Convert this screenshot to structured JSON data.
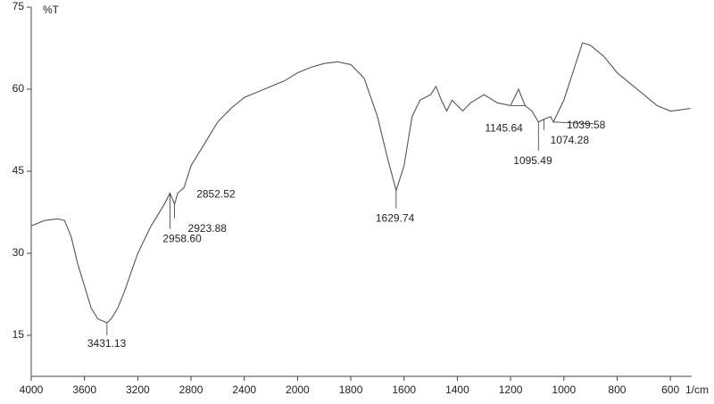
{
  "chart_data": {
    "type": "line",
    "y_title": "%T",
    "x_title": "1/cm",
    "x_scale": {
      "break": 2000,
      "factor": 2
    },
    "xlim": [
      4000,
      520
    ],
    "ylim": [
      7.5,
      75
    ],
    "xticks": [
      4000,
      3600,
      3200,
      2800,
      2400,
      2000,
      1800,
      1600,
      1400,
      1200,
      1000,
      800,
      600
    ],
    "yticks": [
      15,
      30,
      45,
      60,
      75
    ],
    "color": "#555555",
    "x": [
      4000,
      3900,
      3800,
      3750,
      3700,
      3650,
      3600,
      3550,
      3500,
      3431.13,
      3400,
      3350,
      3300,
      3200,
      3100,
      3000,
      2958.6,
      2923.88,
      2900,
      2852.52,
      2800,
      2700,
      2600,
      2500,
      2400,
      2300,
      2200,
      2100,
      2000,
      1950,
      1900,
      1850,
      1800,
      1750,
      1700,
      1660,
      1629.74,
      1600,
      1570,
      1540,
      1500,
      1480,
      1460,
      1440,
      1420,
      1400,
      1380,
      1350,
      1300,
      1250,
      1200,
      1170,
      1145.64,
      1120,
      1095.49,
      1074.28,
      1050,
      1039.58,
      1000,
      960,
      930,
      900,
      850,
      800,
      750,
      700,
      650,
      600,
      550,
      525
    ],
    "values": [
      35,
      36,
      36.3,
      36,
      33,
      28,
      24,
      20,
      18,
      17.3,
      18,
      20,
      23,
      30,
      35,
      39,
      41,
      39,
      41,
      42,
      46,
      50,
      54,
      56.5,
      58.5,
      59.5,
      60.5,
      61.5,
      63,
      64,
      64.7,
      65,
      64.5,
      62,
      55,
      47,
      41.5,
      46,
      55,
      58,
      59,
      60.5,
      58,
      56,
      58,
      57,
      56,
      57.5,
      59,
      57.5,
      57,
      60,
      57,
      56,
      54,
      54.5,
      55,
      54,
      58,
      64,
      68.5,
      68,
      66,
      63,
      61,
      59,
      57,
      56,
      56.3,
      56.5
    ],
    "annotations": [
      {
        "text": "3431.13",
        "x": 3431.13,
        "y": 17.3
      },
      {
        "text": "2958.60",
        "x": 2958.6,
        "y": 41
      },
      {
        "text": "2923.88",
        "x": 2923.88,
        "y": 39
      },
      {
        "text": "2852.52",
        "x": 2852.52,
        "y": 42
      },
      {
        "text": "1629.74",
        "x": 1629.74,
        "y": 41.5
      },
      {
        "text": "1145.64",
        "x": 1145.64,
        "y": 57
      },
      {
        "text": "1095.49",
        "x": 1095.49,
        "y": 54
      },
      {
        "text": "1074.28",
        "x": 1074.28,
        "y": 54.5
      },
      {
        "text": "1039.58",
        "x": 1039.58,
        "y": 54
      }
    ]
  }
}
